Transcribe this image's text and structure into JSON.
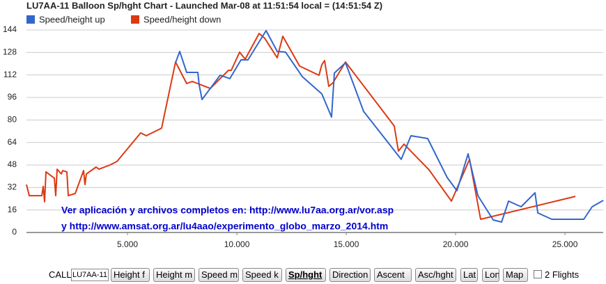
{
  "chart_data": {
    "type": "line",
    "title": "LU7AA-11 Balloon Sp/hght Chart - Launched Mar-08 at 11:51:54 local = (14:51:54 Z)",
    "series": [
      {
        "name": "Speed/height up",
        "color": "#3366cc",
        "x": [
          7196,
          7387,
          7706,
          8215,
          8279,
          8406,
          9234,
          9680,
          10190,
          10508,
          11336,
          11846,
          12228,
          12993,
          13884,
          14330,
          14458,
          14967,
          15795,
          17515,
          17961,
          18725,
          19617,
          20063,
          20573,
          21019,
          21720,
          22102,
          22421,
          22994,
          23631,
          23758,
          24395,
          25860,
          26243,
          26752
        ],
        "values": [
          120.7,
          128.7,
          113.8,
          113.8,
          104.8,
          94.5,
          111.8,
          109.4,
          122.7,
          122.7,
          143.5,
          128.7,
          128.2,
          110.8,
          98.5,
          82.1,
          113.3,
          120.7,
          86.1,
          52.0,
          68.8,
          66.8,
          39.1,
          29.7,
          55.9,
          26.2,
          8.9,
          7.4,
          22.3,
          18.3,
          28.2,
          13.9,
          9.4,
          9.4,
          18.3,
          22.8
        ]
      },
      {
        "name": "Speed/height down",
        "color": "#dc3912",
        "x": [
          380,
          507,
          1081,
          1144,
          1208,
          1272,
          1527,
          1654,
          1718,
          1781,
          1973,
          2036,
          2227,
          2291,
          2610,
          2992,
          3055,
          3119,
          3565,
          3692,
          4202,
          4521,
          5603,
          5858,
          6559,
          7196,
          7706,
          7960,
          8788,
          9617,
          9744,
          10126,
          10381,
          11018,
          11273,
          11846,
          12101,
          12866,
          13757,
          13884,
          14012,
          14203,
          14394,
          14967,
          17197,
          17388,
          17643,
          18789,
          19809,
          20637,
          21146,
          25478
        ],
        "values": [
          34.1,
          26.2,
          26.2,
          32.7,
          21.8,
          43.1,
          40.1,
          38.6,
          26.2,
          45.0,
          41.6,
          44.0,
          43.1,
          26.2,
          27.7,
          44.0,
          34.1,
          41.6,
          46.5,
          45.0,
          48.0,
          50.5,
          70.8,
          68.8,
          74.2,
          121.2,
          105.9,
          107.4,
          102.4,
          115.3,
          115.3,
          128.2,
          123.2,
          141.5,
          138.1,
          124.2,
          139.5,
          118.3,
          111.8,
          119.3,
          122.2,
          103.9,
          106.4,
          121.2,
          75.7,
          57.9,
          62.8,
          44.5,
          22.3,
          52.0,
          9.4,
          25.7
        ]
      }
    ],
    "xlim": [
      380,
      26750
    ],
    "xticks": [
      {
        "value": 5000,
        "label": "5.000"
      },
      {
        "value": 10000,
        "label": "10.000"
      },
      {
        "value": 15000,
        "label": "15.000"
      },
      {
        "value": 20000,
        "label": "20.000"
      },
      {
        "value": 25000,
        "label": "25.000"
      }
    ],
    "ylim": [
      0,
      144
    ],
    "yticks": [
      0,
      16,
      32,
      48,
      64,
      80,
      96,
      112,
      128,
      144
    ],
    "grid": true,
    "legend": "top",
    "annotations": [
      "Ver aplicación y archivos completos en: http://www.lu7aa.org.ar/vor.asp",
      "y   http://www.amsat.org.ar/lu4aao/experimento_globo_marzo_2014.htm"
    ]
  },
  "controls": {
    "call_label": "CALL",
    "call_value": "LU7AA-11",
    "buttons": [
      "Height f",
      "Height m",
      "Speed m",
      "Speed k",
      "Sp/hght",
      "Direction",
      "Ascent",
      "Asc/hght",
      "Lat",
      "Lon",
      "Map"
    ],
    "active_button": "Sp/hght",
    "checkbox_label": "2 Flights"
  }
}
